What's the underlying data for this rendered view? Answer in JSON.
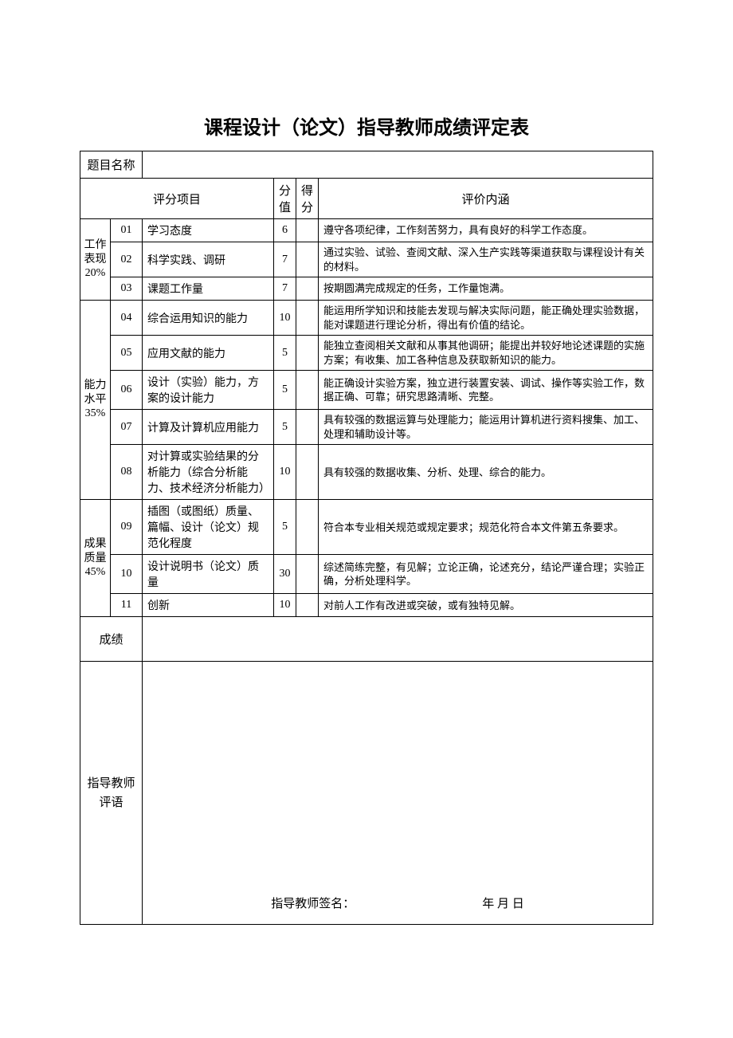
{
  "title": "课程设计（论文）指导教师成绩评定表",
  "topicLabel": "题目名称",
  "topicValue": "",
  "headers": {
    "item": "评分项目",
    "points": "分值",
    "score": "得分",
    "desc": "评价内涵"
  },
  "categories": [
    {
      "label": "工作表现20%",
      "rows": [
        {
          "num": "01",
          "item": "学习态度",
          "points": "6",
          "desc": "遵守各项纪律，工作刻苦努力，具有良好的科学工作态度。"
        },
        {
          "num": "02",
          "item": "科学实践、调研",
          "points": "7",
          "desc": "通过实验、试验、查阅文献、深入生产实践等渠道获取与课程设计有关的材料。"
        },
        {
          "num": "03",
          "item": "课题工作量",
          "points": "7",
          "desc": "按期圆满完成规定的任务，工作量饱满。"
        }
      ]
    },
    {
      "label": "能力水平35%",
      "rows": [
        {
          "num": "04",
          "item": "综合运用知识的能力",
          "points": "10",
          "desc": "能运用所学知识和技能去发现与解决实际问题，能正确处理实验数据，能对课题进行理论分析，得出有价值的结论。"
        },
        {
          "num": "05",
          "item": "应用文献的能力",
          "points": "5",
          "desc": "能独立查阅相关文献和从事其他调研；能提出并较好地论述课题的实施方案；有收集、加工各种信息及获取新知识的能力。"
        },
        {
          "num": "06",
          "item": "设计（实验）能力，方案的设计能力",
          "points": "5",
          "desc": "能正确设计实验方案，独立进行装置安装、调试、操作等实验工作，数据正确、可靠；研究思路清晰、完整。"
        },
        {
          "num": "07",
          "item": "计算及计算机应用能力",
          "points": "5",
          "desc": "具有较强的数据运算与处理能力；能运用计算机进行资料搜集、加工、处理和辅助设计等。"
        },
        {
          "num": "08",
          "item": "对计算或实验结果的分析能力（综合分析能力、技术经济分析能力）",
          "points": "10",
          "desc": "具有较强的数据收集、分析、处理、综合的能力。"
        }
      ]
    },
    {
      "label": "成果质量45%",
      "rows": [
        {
          "num": "09",
          "item": "插图（或图纸）质量、篇幅、设计（论文）规范化程度",
          "points": "5",
          "desc": "符合本专业相关规范或规定要求；规范化符合本文件第五条要求。"
        },
        {
          "num": "10",
          "item": "设计说明书（论文）质量",
          "points": "30",
          "desc": "综述简练完整，有见解；立论正确，论述充分，结论严谨合理；实验正确，分析处理科学。"
        },
        {
          "num": "11",
          "item": "创新",
          "points": "10",
          "desc": "对前人工作有改进或突破，或有独特见解。"
        }
      ]
    }
  ],
  "totalLabel": "成绩",
  "totalValue": "",
  "commentLabel": "指导教师评语",
  "signature": {
    "label": "指导教师签名：",
    "date": "年   月   日"
  }
}
